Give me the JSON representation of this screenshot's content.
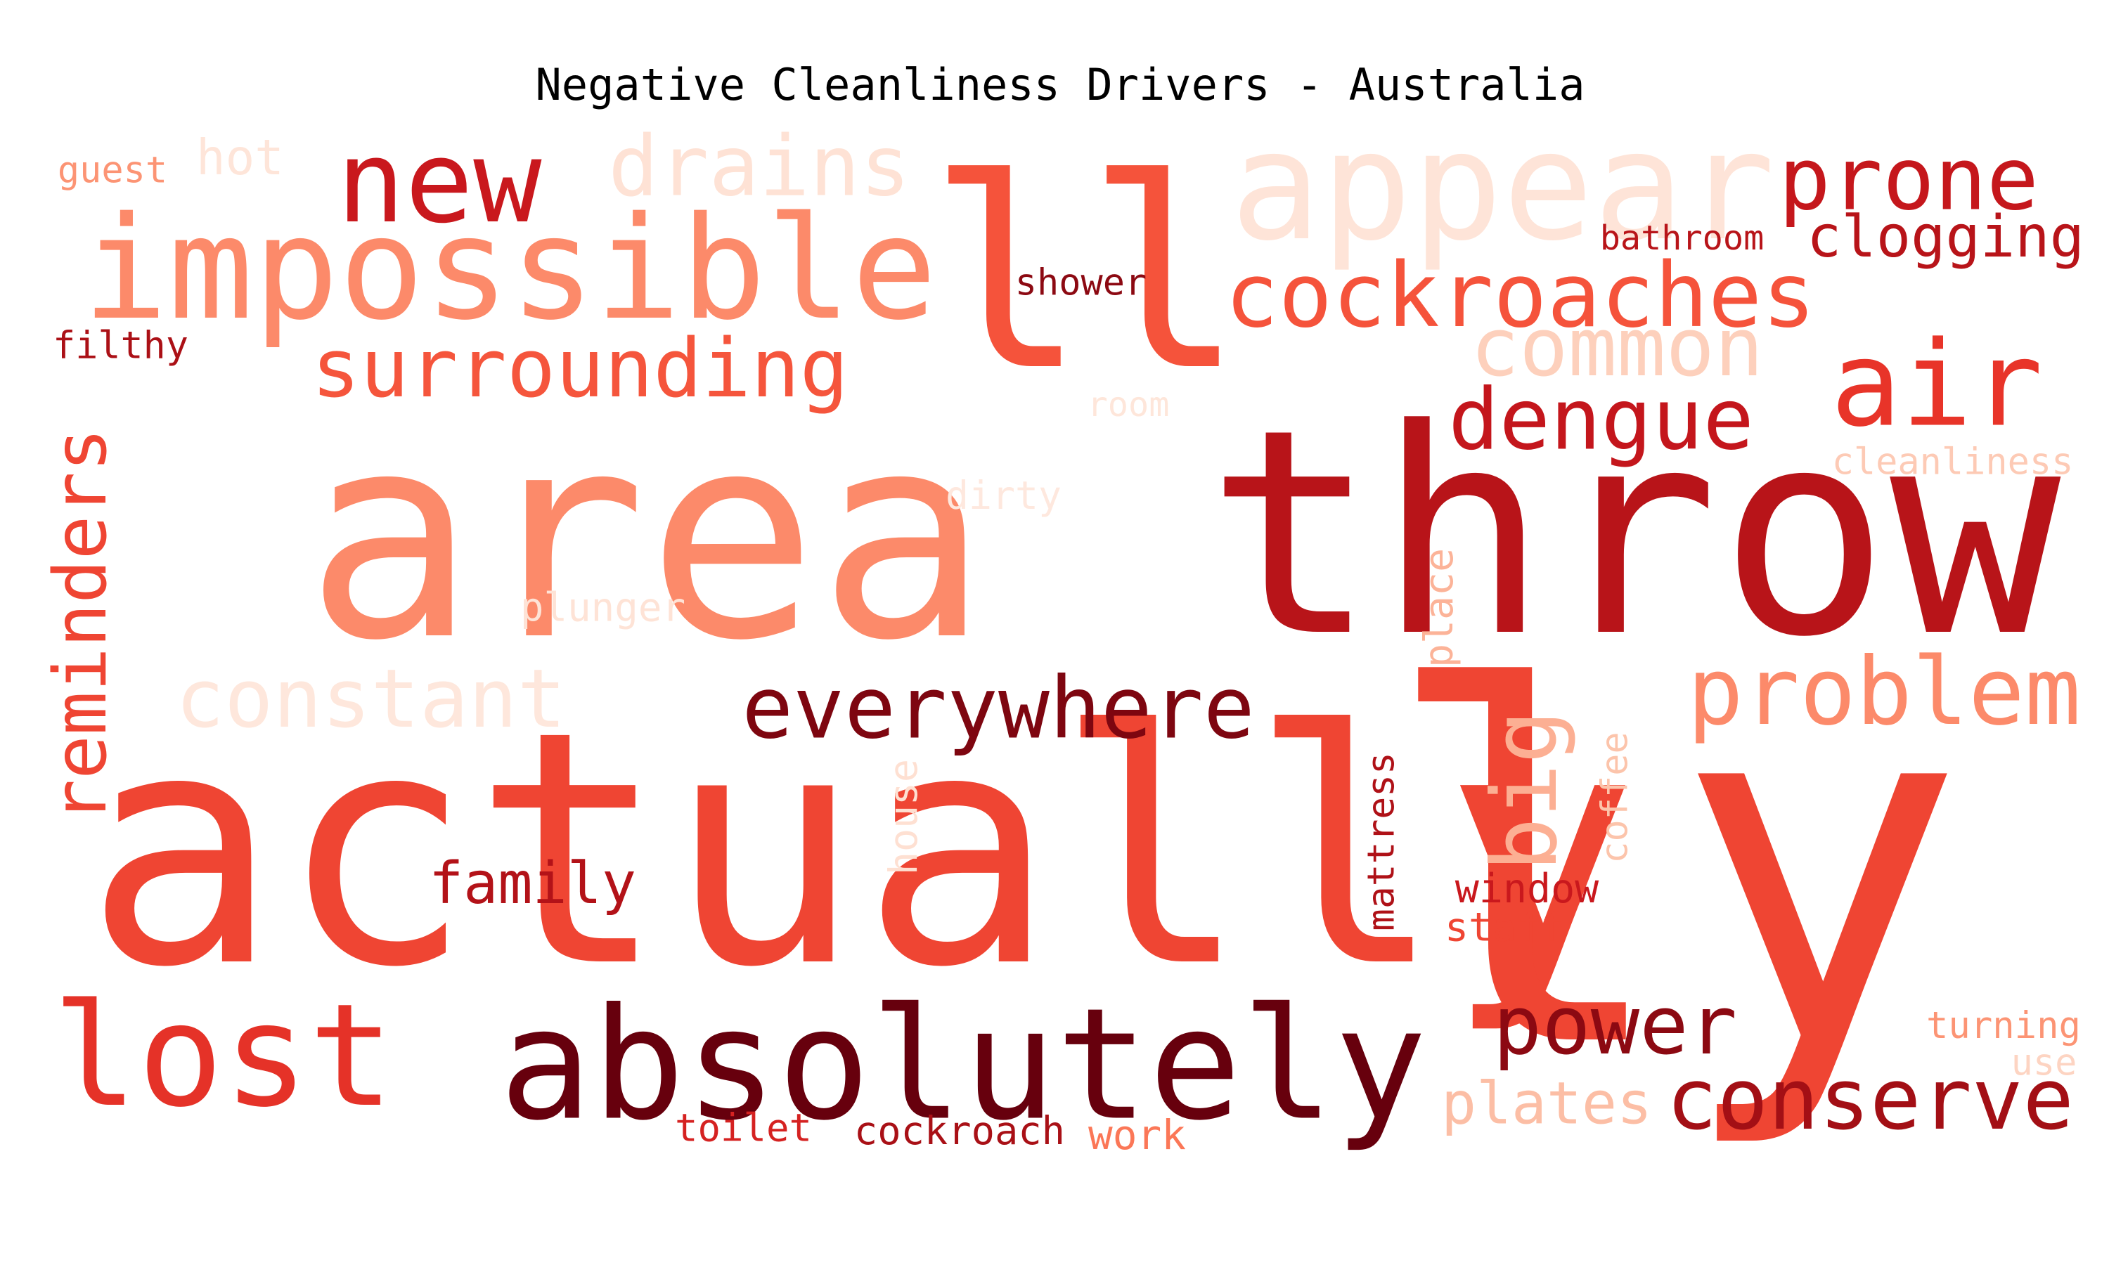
{
  "title": "Negative Cleanliness Drivers - Australia",
  "words": [
    {
      "text": "actually",
      "color": "#ef4533"
    },
    {
      "text": "area",
      "color": "#fc8a6a"
    },
    {
      "text": "throw",
      "color": "#b81419"
    },
    {
      "text": "ll",
      "color": "#f5533b"
    },
    {
      "text": "ly",
      "color": "#ef4533"
    },
    {
      "text": "absolutely",
      "color": "#67000d"
    },
    {
      "text": "impossible",
      "color": "#fc8a6a"
    },
    {
      "text": "appear",
      "color": "#fee4d8"
    },
    {
      "text": "new",
      "color": "#c9181d"
    },
    {
      "text": "lost",
      "color": "#e53228"
    },
    {
      "text": "air",
      "color": "#e83429"
    },
    {
      "text": "problem",
      "color": "#fc8a6a"
    },
    {
      "text": "cockroaches",
      "color": "#f5533b"
    },
    {
      "text": "surrounding",
      "color": "#f5553c"
    },
    {
      "text": "everywhere",
      "color": "#7e0610"
    },
    {
      "text": "reminders",
      "color": "#ef4533"
    },
    {
      "text": "constant",
      "color": "#fee7dc"
    },
    {
      "text": "drains",
      "color": "#fee2d5"
    },
    {
      "text": "prone",
      "color": "#c5171c"
    },
    {
      "text": "conserve",
      "color": "#a30f15"
    },
    {
      "text": "power",
      "color": "#8c0912"
    },
    {
      "text": "dengue",
      "color": "#c4161c"
    },
    {
      "text": "common",
      "color": "#fdd0bc"
    },
    {
      "text": "clogging",
      "color": "#b81419"
    },
    {
      "text": "plates",
      "color": "#fcbea5"
    },
    {
      "text": "big",
      "color": "#fcaf93"
    },
    {
      "text": "family",
      "color": "#b31218"
    },
    {
      "text": "hot",
      "color": "#fee5d9"
    },
    {
      "text": "guest",
      "color": "#fc9474"
    },
    {
      "text": "filthy",
      "color": "#ab1016"
    },
    {
      "text": "shower",
      "color": "#8c0912"
    },
    {
      "text": "bathroom",
      "color": "#b81419"
    },
    {
      "text": "cleanliness",
      "color": "#fdcab5"
    },
    {
      "text": "room",
      "color": "#fee6da"
    },
    {
      "text": "dirty",
      "color": "#fee8de"
    },
    {
      "text": "plunger",
      "color": "#fee3d6"
    },
    {
      "text": "place",
      "color": "#fcb398"
    },
    {
      "text": "coffee",
      "color": "#fcc4ab"
    },
    {
      "text": "house",
      "color": "#fee0d2"
    },
    {
      "text": "mattress",
      "color": "#af1117"
    },
    {
      "text": "window",
      "color": "#c9181d"
    },
    {
      "text": "staff",
      "color": "#ef4533"
    },
    {
      "text": "turning",
      "color": "#fc9474"
    },
    {
      "text": "use",
      "color": "#fdd4c2"
    },
    {
      "text": "toilet",
      "color": "#d52221"
    },
    {
      "text": "cockroach",
      "color": "#a91016"
    },
    {
      "text": "work",
      "color": "#fb7757"
    }
  ]
}
